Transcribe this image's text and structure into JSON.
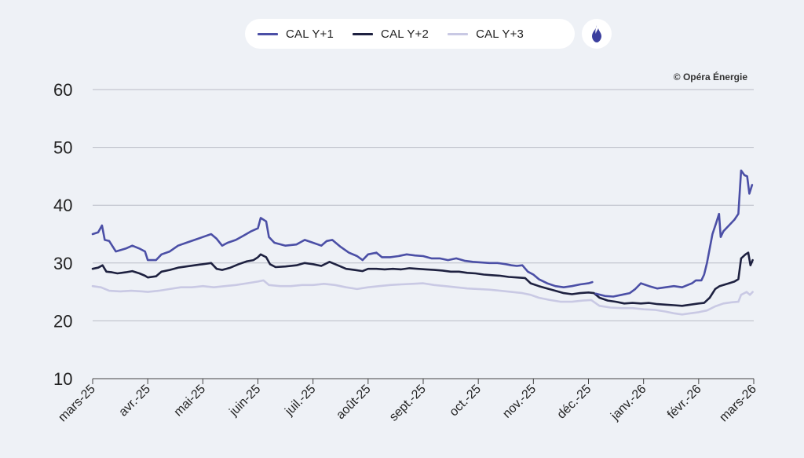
{
  "legend": {
    "items": [
      {
        "label": "CAL Y+1",
        "color": "#4b4fa6"
      },
      {
        "label": "CAL Y+2",
        "color": "#1e2140"
      },
      {
        "label": "CAL Y+3",
        "color": "#c9c9e4"
      }
    ],
    "gas_icon": "gas-flame-icon"
  },
  "copyright": "© Opéra Énergie",
  "chart_data": {
    "type": "line",
    "ylim": [
      10,
      60
    ],
    "yticks": [
      60,
      50,
      40,
      30,
      20,
      10
    ],
    "grid": true,
    "legend_placement": "top-center",
    "xlabels": [
      "mars-25",
      "avr.-25",
      "mai-25",
      "juin-25",
      "juil.-25",
      "août-25",
      "sept.-25",
      "oct.-25",
      "nov.-25",
      "déc.-25",
      "janv.-26",
      "févr.-26",
      "mars-26"
    ],
    "x_range": [
      0,
      12
    ],
    "series": [
      {
        "name": "CAL Y+1",
        "color": "#4b4fa6",
        "points": [
          [
            0,
            35
          ],
          [
            0.1,
            35.3
          ],
          [
            0.17,
            36.5
          ],
          [
            0.22,
            34
          ],
          [
            0.3,
            33.8
          ],
          [
            0.42,
            32
          ],
          [
            0.6,
            32.5
          ],
          [
            0.72,
            33
          ],
          [
            0.85,
            32.5
          ],
          [
            0.95,
            32
          ],
          [
            1.0,
            30.5
          ],
          [
            1.15,
            30.5
          ],
          [
            1.25,
            31.5
          ],
          [
            1.4,
            32
          ],
          [
            1.55,
            33
          ],
          [
            1.7,
            33.5
          ],
          [
            1.85,
            34
          ],
          [
            2.0,
            34.5
          ],
          [
            2.15,
            35
          ],
          [
            2.25,
            34.2
          ],
          [
            2.35,
            33
          ],
          [
            2.45,
            33.5
          ],
          [
            2.6,
            34
          ],
          [
            2.75,
            34.8
          ],
          [
            2.88,
            35.5
          ],
          [
            3.0,
            36
          ],
          [
            3.05,
            37.8
          ],
          [
            3.15,
            37.2
          ],
          [
            3.2,
            34.5
          ],
          [
            3.3,
            33.5
          ],
          [
            3.5,
            33
          ],
          [
            3.7,
            33.2
          ],
          [
            3.85,
            34
          ],
          [
            4.0,
            33.5
          ],
          [
            4.15,
            33
          ],
          [
            4.25,
            33.8
          ],
          [
            4.35,
            34
          ],
          [
            4.5,
            32.8
          ],
          [
            4.65,
            31.8
          ],
          [
            4.8,
            31.2
          ],
          [
            4.9,
            30.5
          ],
          [
            5.0,
            31.5
          ],
          [
            5.15,
            31.8
          ],
          [
            5.25,
            31
          ],
          [
            5.4,
            31
          ],
          [
            5.55,
            31.2
          ],
          [
            5.7,
            31.5
          ],
          [
            5.85,
            31.3
          ],
          [
            6.0,
            31.2
          ],
          [
            6.15,
            30.8
          ],
          [
            6.3,
            30.8
          ],
          [
            6.45,
            30.5
          ],
          [
            6.6,
            30.8
          ],
          [
            6.75,
            30.4
          ],
          [
            6.9,
            30.2
          ],
          [
            7.05,
            30.1
          ],
          [
            7.2,
            30
          ],
          [
            7.35,
            30
          ],
          [
            7.5,
            29.8
          ],
          [
            7.6,
            29.6
          ],
          [
            7.7,
            29.5
          ],
          [
            7.8,
            29.6
          ],
          [
            7.9,
            28.5
          ],
          [
            8.0,
            28
          ],
          [
            8.1,
            27.2
          ],
          [
            8.25,
            26.5
          ],
          [
            8.4,
            26
          ],
          [
            8.55,
            25.8
          ],
          [
            8.7,
            26
          ],
          [
            8.85,
            26.3
          ],
          [
            9.0,
            26.5
          ],
          [
            9.07,
            26.7
          ],
          [
            9.13,
            24.7
          ],
          [
            9.3,
            24.3
          ],
          [
            9.45,
            24.2
          ],
          [
            9.6,
            24.5
          ],
          [
            9.75,
            24.8
          ],
          [
            9.85,
            25.5
          ],
          [
            9.95,
            26.5
          ],
          [
            10.1,
            26
          ],
          [
            10.25,
            25.6
          ],
          [
            10.4,
            25.8
          ],
          [
            10.55,
            26
          ],
          [
            10.7,
            25.8
          ],
          [
            10.8,
            26.2
          ],
          [
            10.88,
            26.5
          ],
          [
            10.95,
            27
          ],
          [
            11.05,
            27
          ],
          [
            11.1,
            28
          ],
          [
            11.15,
            30
          ],
          [
            11.18,
            31.5
          ],
          [
            11.25,
            35
          ],
          [
            11.32,
            37
          ],
          [
            11.37,
            38.5
          ],
          [
            11.4,
            34.5
          ],
          [
            11.45,
            35.5
          ],
          [
            11.55,
            36.5
          ],
          [
            11.65,
            37.5
          ],
          [
            11.72,
            38.5
          ],
          [
            11.77,
            46
          ],
          [
            11.83,
            45.2
          ],
          [
            11.88,
            45
          ],
          [
            11.92,
            42
          ],
          [
            11.97,
            43.5
          ]
        ]
      },
      {
        "name": "CAL Y+2",
        "color": "#1e2140",
        "points": [
          [
            0,
            29
          ],
          [
            0.1,
            29.2
          ],
          [
            0.18,
            29.6
          ],
          [
            0.25,
            28.5
          ],
          [
            0.35,
            28.4
          ],
          [
            0.45,
            28.2
          ],
          [
            0.6,
            28.4
          ],
          [
            0.72,
            28.6
          ],
          [
            0.85,
            28.2
          ],
          [
            0.95,
            27.8
          ],
          [
            1.0,
            27.5
          ],
          [
            1.15,
            27.7
          ],
          [
            1.25,
            28.5
          ],
          [
            1.4,
            28.8
          ],
          [
            1.55,
            29.2
          ],
          [
            1.7,
            29.4
          ],
          [
            1.85,
            29.6
          ],
          [
            2.0,
            29.8
          ],
          [
            2.15,
            30
          ],
          [
            2.25,
            29
          ],
          [
            2.35,
            28.8
          ],
          [
            2.5,
            29.2
          ],
          [
            2.65,
            29.8
          ],
          [
            2.8,
            30.3
          ],
          [
            2.92,
            30.5
          ],
          [
            3.0,
            31
          ],
          [
            3.05,
            31.5
          ],
          [
            3.15,
            31
          ],
          [
            3.22,
            29.8
          ],
          [
            3.32,
            29.3
          ],
          [
            3.5,
            29.4
          ],
          [
            3.7,
            29.6
          ],
          [
            3.85,
            30
          ],
          [
            4.0,
            29.8
          ],
          [
            4.15,
            29.5
          ],
          [
            4.3,
            30.2
          ],
          [
            4.45,
            29.6
          ],
          [
            4.6,
            29
          ],
          [
            4.75,
            28.8
          ],
          [
            4.9,
            28.6
          ],
          [
            5.0,
            29
          ],
          [
            5.15,
            29
          ],
          [
            5.3,
            28.9
          ],
          [
            5.45,
            29
          ],
          [
            5.6,
            28.9
          ],
          [
            5.75,
            29.1
          ],
          [
            5.9,
            29
          ],
          [
            6.05,
            28.9
          ],
          [
            6.2,
            28.8
          ],
          [
            6.35,
            28.7
          ],
          [
            6.5,
            28.5
          ],
          [
            6.65,
            28.5
          ],
          [
            6.8,
            28.3
          ],
          [
            6.95,
            28.2
          ],
          [
            7.1,
            28
          ],
          [
            7.25,
            27.9
          ],
          [
            7.4,
            27.8
          ],
          [
            7.55,
            27.6
          ],
          [
            7.7,
            27.5
          ],
          [
            7.85,
            27.4
          ],
          [
            7.95,
            26.5
          ],
          [
            8.1,
            26
          ],
          [
            8.25,
            25.6
          ],
          [
            8.4,
            25.2
          ],
          [
            8.55,
            24.8
          ],
          [
            8.7,
            24.6
          ],
          [
            8.85,
            24.8
          ],
          [
            9.0,
            24.9
          ],
          [
            9.1,
            24.8
          ],
          [
            9.2,
            24
          ],
          [
            9.35,
            23.5
          ],
          [
            9.5,
            23.3
          ],
          [
            9.65,
            23
          ],
          [
            9.8,
            23.1
          ],
          [
            9.95,
            23
          ],
          [
            10.1,
            23.1
          ],
          [
            10.25,
            22.9
          ],
          [
            10.4,
            22.8
          ],
          [
            10.55,
            22.7
          ],
          [
            10.7,
            22.6
          ],
          [
            10.85,
            22.8
          ],
          [
            11.0,
            23
          ],
          [
            11.1,
            23.1
          ],
          [
            11.2,
            24
          ],
          [
            11.3,
            25.5
          ],
          [
            11.38,
            26
          ],
          [
            11.45,
            26.2
          ],
          [
            11.55,
            26.5
          ],
          [
            11.65,
            26.8
          ],
          [
            11.72,
            27.2
          ],
          [
            11.77,
            30.8
          ],
          [
            11.85,
            31.5
          ],
          [
            11.9,
            31.8
          ],
          [
            11.94,
            29.6
          ],
          [
            11.98,
            30.5
          ]
        ]
      },
      {
        "name": "CAL Y+3",
        "color": "#c9c9e4",
        "points": [
          [
            0,
            26
          ],
          [
            0.15,
            25.8
          ],
          [
            0.3,
            25.2
          ],
          [
            0.5,
            25.1
          ],
          [
            0.7,
            25.2
          ],
          [
            0.9,
            25.1
          ],
          [
            1.0,
            25
          ],
          [
            1.2,
            25.2
          ],
          [
            1.4,
            25.5
          ],
          [
            1.6,
            25.8
          ],
          [
            1.8,
            25.8
          ],
          [
            2.0,
            26
          ],
          [
            2.2,
            25.8
          ],
          [
            2.4,
            26
          ],
          [
            2.6,
            26.2
          ],
          [
            2.8,
            26.5
          ],
          [
            3.0,
            26.8
          ],
          [
            3.1,
            27
          ],
          [
            3.2,
            26.2
          ],
          [
            3.4,
            26
          ],
          [
            3.6,
            26
          ],
          [
            3.8,
            26.2
          ],
          [
            4.0,
            26.2
          ],
          [
            4.2,
            26.4
          ],
          [
            4.4,
            26.2
          ],
          [
            4.6,
            25.8
          ],
          [
            4.8,
            25.5
          ],
          [
            5.0,
            25.8
          ],
          [
            5.2,
            26
          ],
          [
            5.4,
            26.2
          ],
          [
            5.6,
            26.3
          ],
          [
            5.8,
            26.4
          ],
          [
            6.0,
            26.5
          ],
          [
            6.2,
            26.2
          ],
          [
            6.4,
            26
          ],
          [
            6.6,
            25.8
          ],
          [
            6.8,
            25.6
          ],
          [
            7.0,
            25.5
          ],
          [
            7.2,
            25.4
          ],
          [
            7.4,
            25.2
          ],
          [
            7.6,
            25
          ],
          [
            7.8,
            24.8
          ],
          [
            7.95,
            24.5
          ],
          [
            8.1,
            24
          ],
          [
            8.3,
            23.6
          ],
          [
            8.5,
            23.3
          ],
          [
            8.7,
            23.3
          ],
          [
            8.9,
            23.5
          ],
          [
            9.05,
            23.6
          ],
          [
            9.2,
            22.6
          ],
          [
            9.4,
            22.3
          ],
          [
            9.6,
            22.2
          ],
          [
            9.8,
            22.2
          ],
          [
            10.0,
            22
          ],
          [
            10.2,
            21.9
          ],
          [
            10.4,
            21.6
          ],
          [
            10.55,
            21.3
          ],
          [
            10.7,
            21.1
          ],
          [
            10.85,
            21.3
          ],
          [
            11.0,
            21.5
          ],
          [
            11.15,
            21.8
          ],
          [
            11.3,
            22.5
          ],
          [
            11.45,
            23
          ],
          [
            11.6,
            23.2
          ],
          [
            11.72,
            23.3
          ],
          [
            11.77,
            24.5
          ],
          [
            11.87,
            25
          ],
          [
            11.93,
            24.5
          ],
          [
            11.98,
            25
          ]
        ]
      }
    ]
  }
}
